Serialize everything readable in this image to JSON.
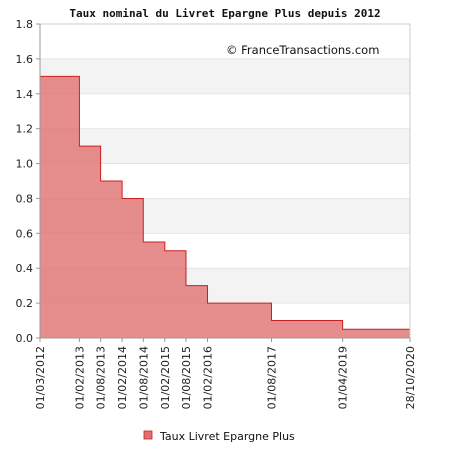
{
  "chart_data": {
    "type": "area",
    "step": true,
    "title": "Taux nominal du Livret Epargne Plus depuis 2012",
    "watermark": "© FranceTransactions.com",
    "xlabel": "",
    "ylabel": "",
    "ylim": [
      0,
      1.8
    ],
    "yticks": [
      "0.0",
      "0.2",
      "0.4",
      "0.6",
      "0.8",
      "1.0",
      "1.2",
      "1.4",
      "1.6",
      "1.8"
    ],
    "xlim": [
      "2012-03-01",
      "2020-10-28"
    ],
    "xticks": [
      "01/03/2012",
      "01/02/2013",
      "01/08/2013",
      "01/02/2014",
      "01/08/2014",
      "01/02/2015",
      "01/08/2015",
      "01/02/2016",
      "01/08/2017",
      "01/04/2019",
      "28/10/2020"
    ],
    "grid": "horizontal bands",
    "legend_position": "bottom",
    "colors": {
      "fill": "#e07070",
      "line": "#cc1f1f",
      "band": "#f3f3f3",
      "axis": "#999999"
    },
    "series": [
      {
        "name": "Taux Livret Epargne Plus",
        "points": [
          {
            "date": "2012-03-01",
            "value": 1.5
          },
          {
            "date": "2013-02-01",
            "value": 1.1
          },
          {
            "date": "2013-08-01",
            "value": 0.9
          },
          {
            "date": "2014-02-01",
            "value": 0.8
          },
          {
            "date": "2014-08-01",
            "value": 0.55
          },
          {
            "date": "2015-02-01",
            "value": 0.5
          },
          {
            "date": "2015-08-01",
            "value": 0.3
          },
          {
            "date": "2016-02-01",
            "value": 0.2
          },
          {
            "date": "2017-08-01",
            "value": 0.1
          },
          {
            "date": "2019-04-01",
            "value": 0.05
          }
        ],
        "end": "2020-10-28"
      }
    ]
  }
}
